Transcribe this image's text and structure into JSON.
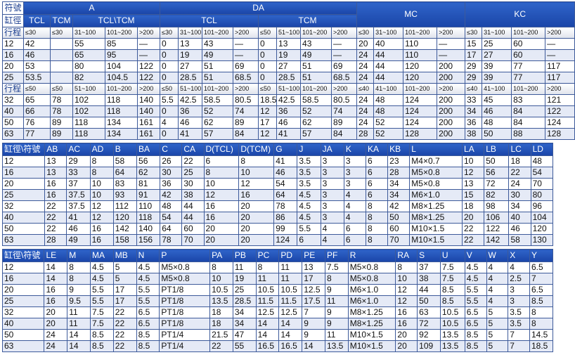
{
  "top": {
    "corner_top": "符號",
    "corner_bottom": "缸徑",
    "col_A": "A",
    "col_DA": "DA",
    "col_MC": "MC",
    "col_KC": "KC",
    "sub_TCL": "TCL",
    "sub_TCM": "TCM",
    "sub_TCL_TCM": "TCL\\TCM",
    "sub_DA_TCL": "TCL",
    "sub_DA_TCM": "TCM",
    "stroke_label": "行程",
    "stroke_ranges": [
      "≤30",
      "≤30",
      "31~100",
      "101~200",
      ">200",
      "≤30",
      "31~100",
      "101~200",
      ">200",
      "≤50",
      "51~100",
      "101~200",
      ">200",
      "≤30",
      "31~100",
      "101~200",
      ">200",
      "≤30",
      "31~100",
      "101~200",
      ">200"
    ],
    "rows": [
      [
        "12",
        "42",
        "",
        "55",
        "85",
        "—",
        "0",
        "13",
        "43",
        "—",
        "0",
        "13",
        "43",
        "—",
        "20",
        "40",
        "110",
        "—",
        "15",
        "25",
        "60",
        "—"
      ],
      [
        "16",
        "46",
        "",
        "65",
        "95",
        "—",
        "0",
        "19",
        "49",
        "—",
        "0",
        "19",
        "49",
        "—",
        "24",
        "44",
        "110",
        "—",
        "17",
        "27",
        "60",
        "—"
      ],
      [
        "20",
        "53",
        "",
        "80",
        "104",
        "122",
        "0",
        "27",
        "51",
        "69",
        "0",
        "27",
        "51",
        "69",
        "24",
        "44",
        "120",
        "200",
        "29",
        "39",
        "77",
        "117"
      ],
      [
        "25",
        "53.5",
        "",
        "82",
        "104.5",
        "122",
        "0",
        "28.5",
        "51",
        "68.5",
        "0",
        "28.5",
        "51",
        "68.5",
        "24",
        "44",
        "120",
        "200",
        "29",
        "39",
        "77",
        "117"
      ]
    ],
    "stroke_ranges2": [
      "≤50",
      "≤50",
      "51~100",
      "101~200",
      ">200",
      "≤50",
      "51~100",
      "101~200",
      ">200",
      "≤50",
      "51~100",
      "101~200",
      ">200",
      "≤40",
      "41~100",
      "101~200",
      ">200",
      "≤40",
      "41~100",
      "101~200",
      ">200"
    ],
    "rows2": [
      [
        "32",
        "65",
        "78",
        "102",
        "118",
        "140",
        "5.5",
        "42.5",
        "58.5",
        "80.5",
        "18.5",
        "42.5",
        "58.5",
        "80.5",
        "24",
        "48",
        "124",
        "200",
        "33",
        "45",
        "83",
        "121"
      ],
      [
        "40",
        "66",
        "78",
        "102",
        "118",
        "140",
        "0",
        "36",
        "52",
        "74",
        "12",
        "36",
        "52",
        "74",
        "24",
        "48",
        "124",
        "200",
        "34",
        "46",
        "84",
        "122"
      ],
      [
        "50",
        "76",
        "89",
        "118",
        "134",
        "161",
        "4",
        "46",
        "62",
        "89",
        "17",
        "46",
        "62",
        "89",
        "24",
        "52",
        "124",
        "200",
        "36",
        "48",
        "84",
        "124"
      ],
      [
        "63",
        "77",
        "89",
        "118",
        "134",
        "161",
        "0",
        "41",
        "57",
        "84",
        "12",
        "41",
        "57",
        "84",
        "28",
        "52",
        "128",
        "200",
        "38",
        "50",
        "88",
        "128"
      ]
    ]
  },
  "mid": {
    "headers": [
      "缸徑\\符號",
      "AB",
      "AC",
      "AD",
      "B",
      "BA",
      "C",
      "CA",
      "D(TCL)",
      "D(TCM)",
      "G",
      "J",
      "JA",
      "K",
      "KA",
      "KB",
      "L",
      "LA",
      "LB",
      "LC",
      "LD"
    ],
    "rows": [
      [
        "12",
        "13",
        "29",
        "8",
        "58",
        "56",
        "26",
        "22",
        "6",
        "8",
        "41",
        "3.5",
        "3",
        "3",
        "6",
        "23",
        "M4×0.7",
        "10",
        "50",
        "18",
        "48"
      ],
      [
        "16",
        "13",
        "33",
        "8",
        "64",
        "62",
        "30",
        "25",
        "8",
        "10",
        "46",
        "3.5",
        "3",
        "3",
        "6",
        "28",
        "M5×0.8",
        "12",
        "56",
        "22",
        "54"
      ],
      [
        "20",
        "16",
        "37",
        "10",
        "83",
        "81",
        "36",
        "30",
        "10",
        "12",
        "54",
        "3.5",
        "3",
        "3",
        "6",
        "34",
        "M5×0.8",
        "13",
        "72",
        "24",
        "70"
      ],
      [
        "25",
        "16",
        "37.5",
        "10",
        "93",
        "91",
        "42",
        "38",
        "12",
        "16",
        "64",
        "4.5",
        "3",
        "4",
        "6",
        "34",
        "M6×1.0",
        "15",
        "82",
        "30",
        "80"
      ],
      [
        "32",
        "22",
        "37.5",
        "12",
        "112",
        "110",
        "48",
        "44",
        "16",
        "20",
        "78",
        "4.5",
        "3",
        "4",
        "8",
        "42",
        "M8×1.25",
        "18",
        "98",
        "34",
        "96"
      ],
      [
        "40",
        "22",
        "41",
        "12",
        "120",
        "118",
        "54",
        "44",
        "16",
        "20",
        "86",
        "4.5",
        "3",
        "4",
        "8",
        "50",
        "M8×1.25",
        "20",
        "106",
        "40",
        "104"
      ],
      [
        "50",
        "22",
        "46",
        "16",
        "142",
        "140",
        "64",
        "60",
        "20",
        "20",
        "99",
        "5.5",
        "4",
        "6",
        "8",
        "60",
        "M10×1.5",
        "22",
        "122",
        "46",
        "120"
      ],
      [
        "63",
        "28",
        "49",
        "16",
        "158",
        "156",
        "78",
        "70",
        "20",
        "20",
        "124",
        "6",
        "4",
        "6",
        "8",
        "70",
        "M10×1.5",
        "22",
        "142",
        "58",
        "130"
      ]
    ]
  },
  "bot": {
    "headers": [
      "缸徑\\符號",
      "LE",
      "M",
      "MA",
      "MB",
      "N",
      "P",
      "PA",
      "PB",
      "PC",
      "PD",
      "PE",
      "PF",
      "R",
      "RA",
      "S",
      "U",
      "V",
      "W",
      "X",
      "Y"
    ],
    "rows": [
      [
        "12",
        "14",
        "8",
        "4.5",
        "5",
        "4.5",
        "M5×0.8",
        "8",
        "11",
        "8",
        "11",
        "13",
        "7.5",
        "M5×0.8",
        "8",
        "37",
        "7.5",
        "4.5",
        "4",
        "4",
        "6.5"
      ],
      [
        "16",
        "14",
        "8",
        "4.5",
        "5",
        "4.5",
        "M5×0.8",
        "10",
        "19",
        "11",
        "11",
        "17",
        "8",
        "M5×0.8",
        "10",
        "38",
        "7.5",
        "4.5",
        "4",
        "2.5",
        "7"
      ],
      [
        "20",
        "16",
        "9",
        "5.5",
        "17",
        "5.5",
        "PT1/8",
        "10.5",
        "25",
        "10.5",
        "10.5",
        "12.5",
        "9",
        "M6×1.0",
        "12",
        "44",
        "8.5",
        "5.5",
        "4",
        "3",
        "6.5"
      ],
      [
        "25",
        "16",
        "9.5",
        "5.5",
        "17",
        "5.5",
        "PT1/8",
        "13.5",
        "28.5",
        "11.5",
        "11.5",
        "17.5",
        "11",
        "M6×1.0",
        "12",
        "50",
        "8.5",
        "5.5",
        "4",
        "3",
        "8.5"
      ],
      [
        "32",
        "20",
        "11",
        "7.5",
        "22",
        "6.5",
        "PT1/8",
        "18",
        "34",
        "12.5",
        "12.5",
        "7",
        "9",
        "M8×1.25",
        "16",
        "63",
        "10.5",
        "6.5",
        "5",
        "3.5",
        "8"
      ],
      [
        "40",
        "20",
        "11",
        "7.5",
        "22",
        "6.5",
        "PT1/8",
        "18",
        "34",
        "14",
        "14",
        "9",
        "9",
        "M8×1.25",
        "16",
        "72",
        "10.5",
        "6.5",
        "5",
        "3.5",
        "8"
      ],
      [
        "50",
        "24",
        "14",
        "8.5",
        "22",
        "8.5",
        "PT1/4",
        "21.5",
        "47",
        "14",
        "14",
        "9",
        "11",
        "M10×1.5",
        "20",
        "92",
        "13.5",
        "8.5",
        "5",
        "7",
        "14.5"
      ],
      [
        "63",
        "24",
        "14",
        "8.5",
        "22",
        "8.5",
        "PT1/4",
        "22",
        "55",
        "16.5",
        "16.5",
        "14",
        "13.5",
        "M10×1.5",
        "20",
        "109",
        "13.5",
        "8.5",
        "5",
        "7",
        "18.5"
      ]
    ]
  }
}
